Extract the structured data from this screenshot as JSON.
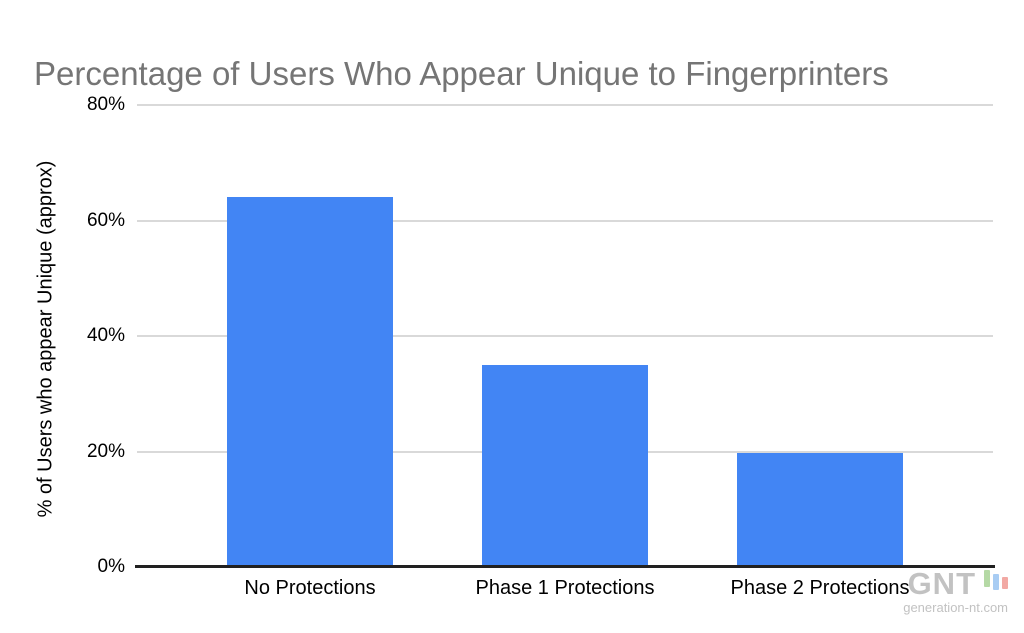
{
  "title": {
    "text": "Percentage of Users Who Appear Unique to Fingerprinters",
    "color": "#757575"
  },
  "chart_data": {
    "type": "bar",
    "categories": [
      "No Protections",
      "Phase 1 Protections",
      "Phase 2 Protections"
    ],
    "values": [
      64,
      35,
      19.8
    ],
    "title": "Percentage of Users Who Appear Unique to Fingerprinters",
    "xlabel": "",
    "ylabel": "% of Users who appear Unique (approx)",
    "ylim": [
      0,
      80
    ],
    "ytick_labels": [
      "0%",
      "20%",
      "40%",
      "60%",
      "80%"
    ],
    "ytick_values": [
      0,
      20,
      40,
      60,
      80
    ],
    "grid": true,
    "legend": "none",
    "bar_color": "#4285f4",
    "gridline_color": "#d9d9d9",
    "axis_line_color": "#212121",
    "axis_text_color": "#000000"
  },
  "watermark": {
    "logo_text": "GNT",
    "site_text": "generation-nt.com",
    "text_color": "#c2c2c2",
    "bar_colors": [
      "#b5d9a5",
      "#a8ccf3",
      "#f2a9a4"
    ]
  }
}
